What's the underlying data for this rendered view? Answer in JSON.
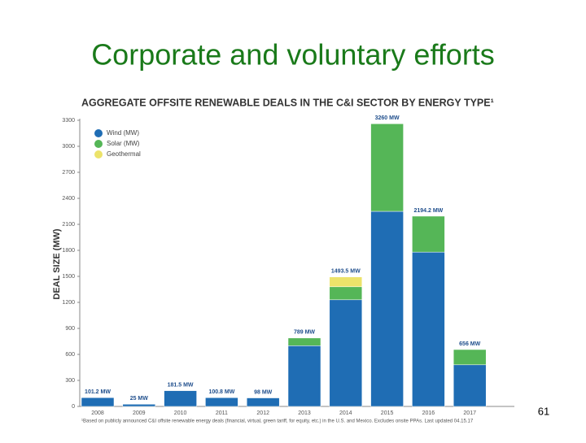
{
  "header": {
    "title": "Corporate and voluntary efforts"
  },
  "chart_data": {
    "type": "stacked_bar",
    "title": "AGGREGATE OFFSITE RENEWABLE DEALS IN THE C&I SECTOR BY ENERGY TYPE¹",
    "y_label": "DEAL SIZE (MW)",
    "categories": [
      "2008",
      "2009",
      "2010",
      "2011",
      "2012",
      "2013",
      "2014",
      "2015",
      "2016",
      "2017"
    ],
    "series": [
      {
        "name": "Wind (MW)",
        "color": "#1f6db4",
        "values": [
          101.2,
          25,
          181.5,
          100.8,
          98,
          700,
          1230,
          2250,
          1780,
          480
        ]
      },
      {
        "name": "Solar (MW)",
        "color": "#55b657",
        "values": [
          0,
          0,
          0,
          0,
          0,
          89,
          150,
          1010,
          414.2,
          176
        ]
      },
      {
        "name": "Geothermal",
        "color": "#ece36a",
        "values": [
          0,
          0,
          0,
          0,
          0,
          0,
          113.5,
          0,
          0,
          0
        ]
      }
    ],
    "totals": [
      101.2,
      25,
      181.5,
      100.8,
      98,
      789,
      1493.5,
      3260,
      2194.2,
      656
    ],
    "total_labels": [
      "101.2 MW",
      "25 MW",
      "181.5 MW",
      "100.8 MW",
      "98 MW",
      "789 MW",
      "1493.5 MW",
      "3260 MW",
      "2194.2 MW",
      "656 MW"
    ],
    "ylim": [
      0,
      3300
    ],
    "yticks": [
      0,
      300,
      600,
      900,
      1200,
      1500,
      1800,
      2100,
      2400,
      2700,
      3000,
      3300
    ],
    "grid": false,
    "legend": "top-left",
    "footnote": "¹Based on publicly announced C&I offsite renewable energy deals (financial, virtual, green tariff, for equity, etc.) in the U.S. and Mexico. Excludes onsite PPAs. Last updated 04.15.17"
  },
  "page_number": "61"
}
